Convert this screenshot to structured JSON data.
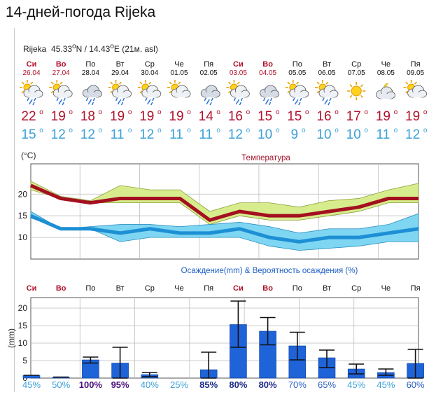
{
  "title": "14-дней-погода Rijeka",
  "location": {
    "name": "Rijeka",
    "lat": "45.33",
    "lon": "14.43",
    "alt": "(21м. asl)"
  },
  "days": [
    {
      "day": "Си",
      "date": "26.04",
      "weekend": true,
      "icon": "sun-cloud-rain-icon",
      "tmax": "22",
      "tmin": "15"
    },
    {
      "day": "Во",
      "date": "27.04",
      "weekend": true,
      "icon": "sun-cloud-rain-icon",
      "tmax": "19",
      "tmin": "12"
    },
    {
      "day": "По",
      "date": "28.04",
      "weekend": false,
      "icon": "cloud-rain-icon",
      "tmax": "18",
      "tmin": "12"
    },
    {
      "day": "Вт",
      "date": "29.04",
      "weekend": false,
      "icon": "sun-cloud-rain-icon",
      "tmax": "19",
      "tmin": "11"
    },
    {
      "day": "Ср",
      "date": "30.04",
      "weekend": false,
      "icon": "sun-cloud-rain-icon",
      "tmax": "19",
      "tmin": "12"
    },
    {
      "day": "Че",
      "date": "01.05",
      "weekend": false,
      "icon": "sun-cloud-icon",
      "tmax": "19",
      "tmin": "11"
    },
    {
      "day": "Пя",
      "date": "02.05",
      "weekend": false,
      "icon": "cloud-rain-icon",
      "tmax": "14",
      "tmin": "11"
    },
    {
      "day": "Си",
      "date": "03.05",
      "weekend": true,
      "icon": "sun-cloud-rain-icon",
      "tmax": "16",
      "tmin": "12"
    },
    {
      "day": "Во",
      "date": "04.05",
      "weekend": true,
      "icon": "cloud-rain-icon",
      "tmax": "15",
      "tmin": "10"
    },
    {
      "day": "По",
      "date": "05.05",
      "weekend": false,
      "icon": "sun-cloud-rain-icon",
      "tmax": "15",
      "tmin": "9"
    },
    {
      "day": "Вт",
      "date": "06.05",
      "weekend": false,
      "icon": "sun-cloud-rain-icon",
      "tmax": "16",
      "tmin": "10"
    },
    {
      "day": "Ср",
      "date": "07.05",
      "weekend": false,
      "icon": "sun-icon",
      "tmax": "17",
      "tmin": "10"
    },
    {
      "day": "Че",
      "date": "08.05",
      "weekend": false,
      "icon": "moon-cloud-icon",
      "tmax": "19",
      "tmin": "11"
    },
    {
      "day": "Пя",
      "date": "09.05",
      "weekend": false,
      "icon": "sun-cloud-icon",
      "tmax": "19",
      "tmin": "12"
    }
  ],
  "colors": {
    "weekend": "#b0102a",
    "tmax": "#b0102a",
    "tmin": "#3aa0d8",
    "tmax_band": "#d7ec8c",
    "tmin_band": "#7fd6f2",
    "precip_bar": "#1f63d9",
    "temp_title": "#a0142a",
    "precip_title": "#1e5fc6"
  },
  "chart_data": [
    {
      "type": "line",
      "title": "Температура",
      "ylabel": "(°C)",
      "ylim": [
        5,
        27
      ],
      "yticks": [
        10,
        15,
        20
      ],
      "x": [
        "26.04",
        "27.04",
        "28.04",
        "29.04",
        "30.04",
        "01.05",
        "02.05",
        "03.05",
        "04.05",
        "05.05",
        "06.05",
        "07.05",
        "08.05",
        "09.05"
      ],
      "series": [
        {
          "values": [
            22,
            19,
            18,
            19,
            19,
            19,
            14,
            16,
            15,
            15,
            16,
            17,
            19,
            19
          ],
          "low": [
            21,
            19,
            18,
            18,
            18,
            18,
            13,
            15,
            14,
            14,
            15,
            16,
            18,
            18
          ],
          "high": [
            23,
            19.5,
            18.5,
            22,
            21,
            21,
            16,
            18,
            18,
            17,
            18.5,
            19,
            21,
            22.5
          ]
        },
        {
          "values": [
            15,
            12,
            12,
            11,
            12,
            11,
            11,
            12,
            10,
            9,
            10,
            10,
            11,
            12
          ],
          "low": [
            14.5,
            12,
            12,
            9,
            10,
            10,
            10,
            10,
            8,
            7,
            7.5,
            8,
            9,
            9
          ],
          "high": [
            16,
            12,
            12.5,
            13,
            13,
            12.5,
            13,
            13.5,
            12.5,
            11,
            12,
            12,
            13,
            15.5
          ]
        }
      ],
      "grid": true
    },
    {
      "type": "bar",
      "title": "Осаждение(mm) & Вероятность осаждения (%)",
      "ylabel": "(mm)",
      "ylim": [
        0,
        23
      ],
      "yticks": [
        0,
        5,
        10,
        15,
        20
      ],
      "categories": [
        "Си",
        "Во",
        "По",
        "Вт",
        "Ср",
        "Че",
        "Пя",
        "Си",
        "Во",
        "По",
        "Вт",
        "Ср",
        "Че",
        "Пя"
      ],
      "values": [
        0.8,
        0.3,
        5.2,
        4.3,
        1.0,
        0,
        2.4,
        15.3,
        13.4,
        9.2,
        5.8,
        2.6,
        1.6,
        4.2
      ],
      "err_low": [
        0.8,
        0.3,
        4.3,
        0,
        0.4,
        0,
        0,
        8.8,
        9.5,
        5.2,
        3.0,
        1.2,
        0.8,
        0
      ],
      "err_high": [
        0.8,
        0.3,
        6.0,
        8.8,
        1.6,
        0,
        7.4,
        22.0,
        17.3,
        13.1,
        8.0,
        4.0,
        2.6,
        8.2
      ],
      "probability": [
        "45%",
        "50%",
        "100%",
        "95%",
        "40%",
        "25%",
        "85%",
        "80%",
        "80%",
        "70%",
        "65%",
        "45%",
        "45%",
        "60%"
      ],
      "grid": true
    }
  ]
}
